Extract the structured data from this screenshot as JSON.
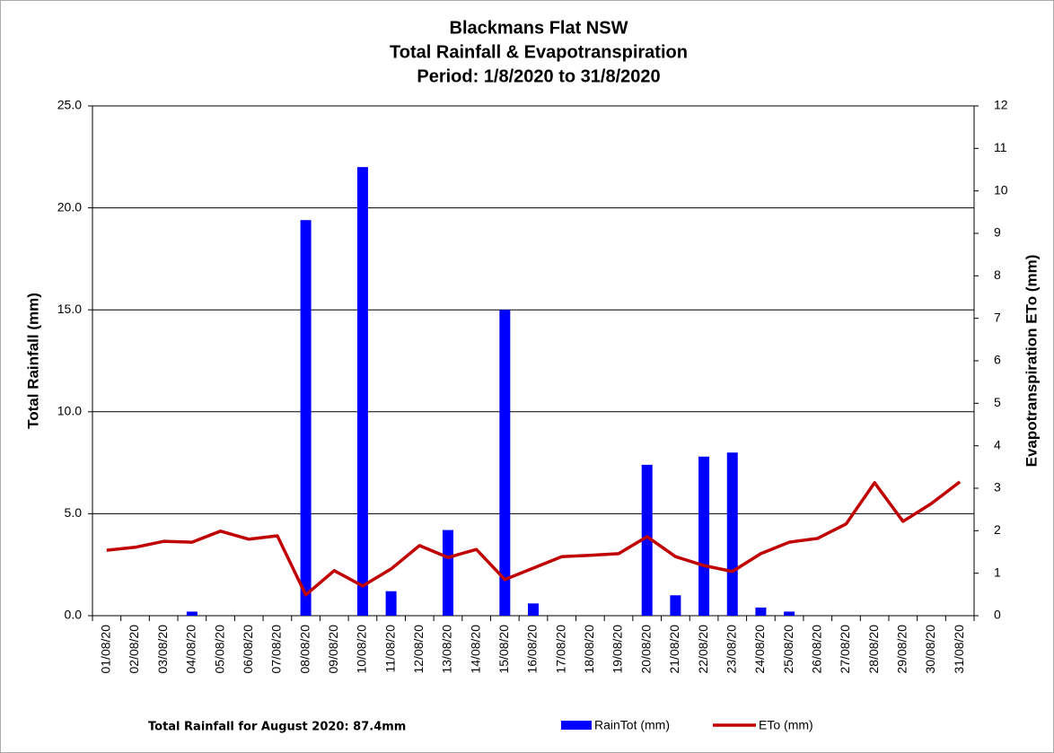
{
  "chart_data": {
    "type": "bar-line",
    "title": [
      "Blackmans Flat NSW",
      "Total Rainfall & Evapotranspiration",
      "Period: 1/8/2020 to 31/8/2020"
    ],
    "y_label": "Total Rainfall (mm)",
    "y2_label": "Evapotranspiration ETo (mm)",
    "annotation": "Total Rainfall for August 2020: 87.4mm",
    "categories": [
      "01/08/20",
      "02/08/20",
      "03/08/20",
      "04/08/20",
      "05/08/20",
      "06/08/20",
      "07/08/20",
      "08/08/20",
      "09/08/20",
      "10/08/20",
      "11/08/20",
      "12/08/20",
      "13/08/20",
      "14/08/20",
      "15/08/20",
      "16/08/20",
      "17/08/20",
      "18/08/20",
      "19/08/20",
      "20/08/20",
      "21/08/20",
      "22/08/20",
      "23/08/20",
      "24/08/20",
      "25/08/20",
      "26/08/20",
      "27/08/20",
      "28/08/20",
      "29/08/20",
      "30/08/20",
      "31/08/20"
    ],
    "series": [
      {
        "name": "RainTot (mm)",
        "type": "bar",
        "color": "#0000ff",
        "values": [
          0,
          0,
          0,
          0.2,
          0,
          0,
          0,
          19.4,
          0,
          22.0,
          1.2,
          0,
          4.2,
          0,
          15.0,
          0.6,
          0,
          0,
          0,
          7.4,
          1.0,
          7.8,
          8.0,
          0.4,
          0.2,
          0,
          0,
          0,
          0,
          0,
          0
        ]
      },
      {
        "name": "ETo (mm)",
        "type": "line",
        "axis": "y2",
        "color": "#c00000",
        "values": [
          1.54,
          1.61,
          1.75,
          1.73,
          1.99,
          1.8,
          1.88,
          0.49,
          1.06,
          0.7,
          1.1,
          1.65,
          1.37,
          1.56,
          0.85,
          1.12,
          1.39,
          1.42,
          1.46,
          1.86,
          1.39,
          1.18,
          1.04,
          1.46,
          1.73,
          1.82,
          2.16,
          3.13,
          2.22,
          2.64,
          3.15
        ]
      }
    ],
    "ylim": [
      0,
      25
    ],
    "yticks": [
      {
        "value": 0,
        "label": "0.0"
      },
      {
        "value": 5,
        "label": "5.0"
      },
      {
        "value": 10,
        "label": "10.0"
      },
      {
        "value": 15,
        "label": "15.0"
      },
      {
        "value": 20,
        "label": "20.0"
      },
      {
        "value": 25,
        "label": "25.0"
      }
    ],
    "y2lim": [
      0,
      12
    ],
    "y2ticks": [
      0,
      1,
      2,
      3,
      4,
      5,
      6,
      7,
      8,
      9,
      10,
      11,
      12
    ],
    "grid": true,
    "legend": "bottom"
  }
}
